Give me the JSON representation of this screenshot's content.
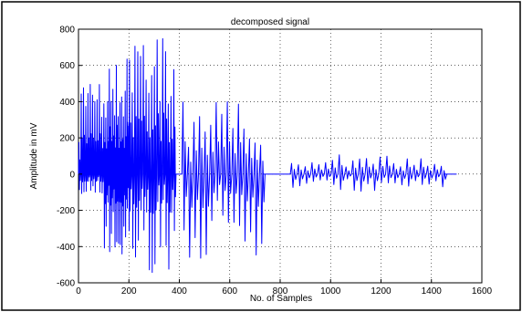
{
  "chart_data": {
    "type": "line",
    "title": "decomposed signal",
    "xlabel": "No. of Samples",
    "ylabel": "Amplitude in mV",
    "xlim": [
      0,
      1600
    ],
    "ylim": [
      -600,
      800
    ],
    "xticks": [
      0,
      200,
      400,
      600,
      800,
      1000,
      1200,
      1400,
      1600
    ],
    "yticks": [
      -600,
      -400,
      -200,
      0,
      200,
      400,
      600,
      800
    ],
    "grid": "on (dotted)",
    "line_color": "#0000ff",
    "series": [
      {
        "segments": [
          {
            "x_range": [
              0,
              100
            ],
            "spike_spacing": 9,
            "max_amplitude": 500,
            "min_amplitude": -110
          },
          {
            "x_range": [
              100,
              200
            ],
            "spike_spacing": 7,
            "max_amplitude": 650,
            "min_amplitude": -460
          },
          {
            "x_range": [
              200,
              380
            ],
            "spike_spacing": 11,
            "max_amplitude": 800,
            "min_amplitude": -545
          },
          {
            "x_range": [
              410,
              735
            ],
            "spike_spacing": 22,
            "max_amplitude": 400,
            "min_amplitude": -465
          },
          {
            "x_range": [
              840,
              1450
            ],
            "spike_spacing": 27,
            "max_amplitude": 110,
            "min_amplitude": -95
          }
        ]
      }
    ]
  }
}
